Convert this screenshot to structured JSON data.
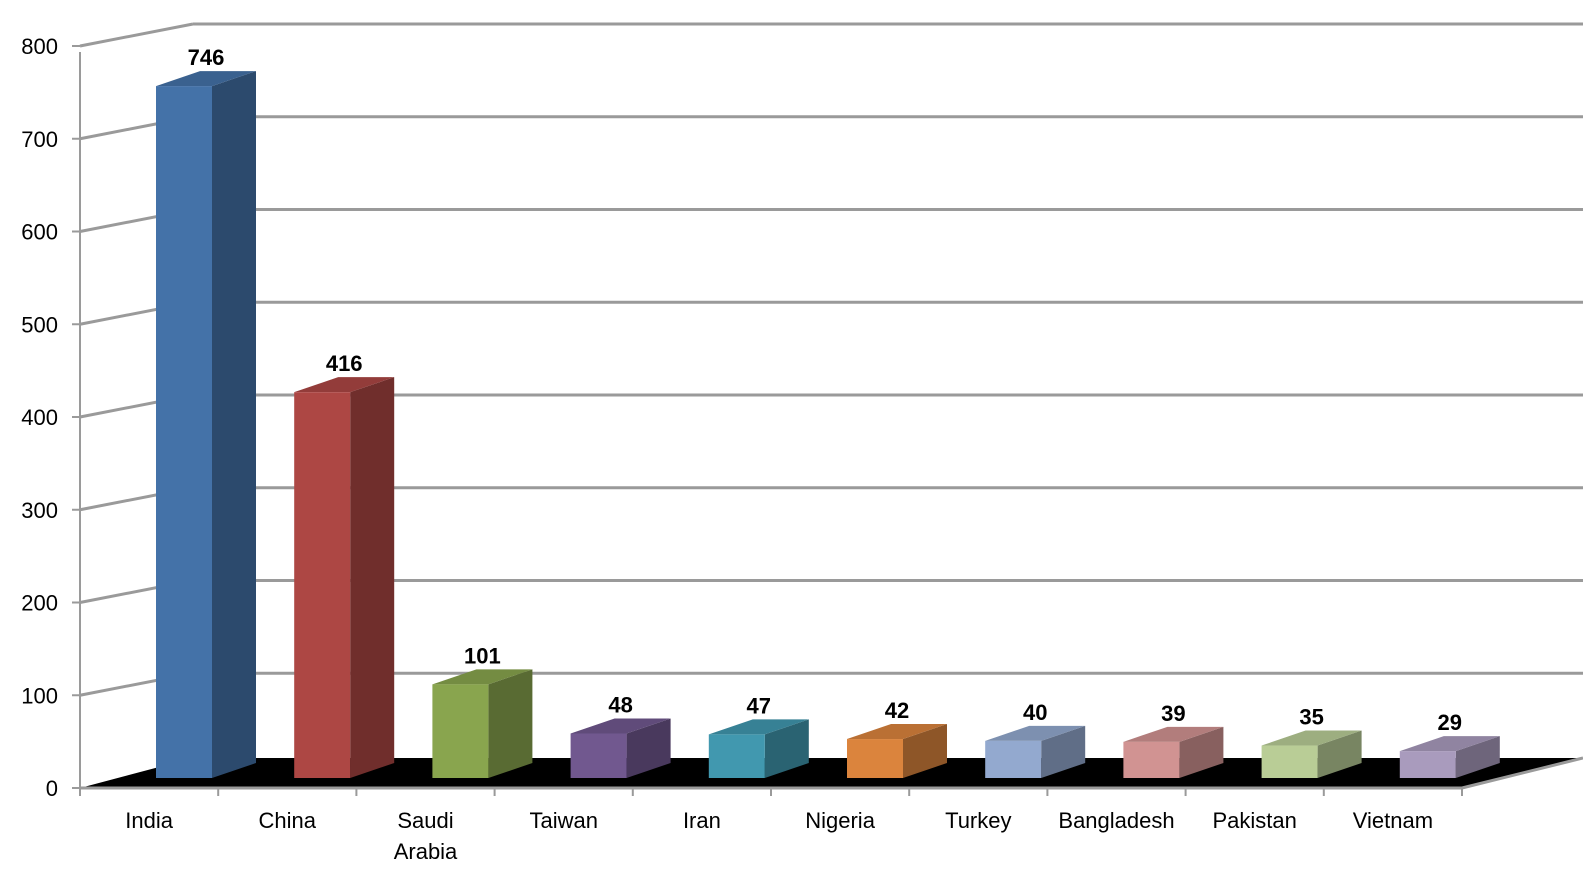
{
  "chart_data": {
    "type": "bar",
    "title": "",
    "xlabel": "",
    "ylabel": "",
    "ylim": [
      0,
      800
    ],
    "yticks": [
      0,
      100,
      200,
      300,
      400,
      500,
      600,
      700,
      800
    ],
    "grid": true,
    "view": "3d",
    "categories": [
      "India",
      "China",
      "Saudi Arabia",
      "Taiwan",
      "Iran",
      "Nigeria",
      "Turkey",
      "Bangladesh",
      "Pakistan",
      "Vietnam"
    ],
    "category_lines": [
      [
        "India"
      ],
      [
        "China"
      ],
      [
        "Saudi",
        "Arabia"
      ],
      [
        "Taiwan"
      ],
      [
        "Iran"
      ],
      [
        "Nigeria"
      ],
      [
        "Turkey"
      ],
      [
        "Bangladesh"
      ],
      [
        "Pakistan"
      ],
      [
        "Vietnam"
      ]
    ],
    "values": [
      746,
      416,
      101,
      48,
      47,
      42,
      40,
      39,
      35,
      29
    ],
    "data_labels": [
      "746",
      "416",
      "101",
      "48",
      "47",
      "42",
      "40",
      "39",
      "35",
      "29"
    ],
    "colors": [
      "#4472a8",
      "#ad4744",
      "#89a54e",
      "#71588f",
      "#4198af",
      "#db843d",
      "#93a9cf",
      "#d19392",
      "#b9cd96",
      "#a99bbd"
    ],
    "floor_color": "#000000",
    "grid_color": "#9a9a9a"
  }
}
